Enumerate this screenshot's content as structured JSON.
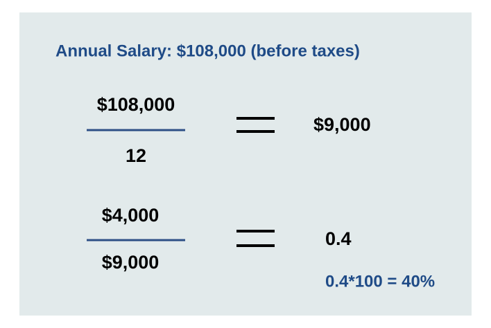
{
  "header": {
    "title": "Annual Salary: $108,000 (before taxes)"
  },
  "equations": [
    {
      "numerator": "$108,000",
      "denominator": "12",
      "result": "$9,000"
    },
    {
      "numerator": "$4,000",
      "denominator": "$9,000",
      "result": "0.4"
    }
  ],
  "note": "0.4*100 = 40%"
}
